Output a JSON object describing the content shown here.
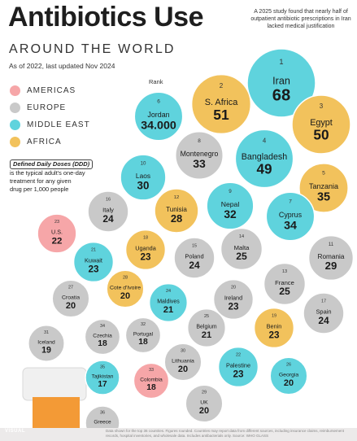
{
  "header": {
    "title": "Antibiotics Use",
    "subtitle": "AROUND THE WORLD",
    "date_note": "As of 2022, last updated Nov 2024",
    "study_note": "A 2025 study found that nearly half of outpatient antibiotic prescriptions in Iran lacked medical justification"
  },
  "legend": [
    {
      "label": "AMERICAS",
      "color": "#f6a6a8"
    },
    {
      "label": "EUROPE",
      "color": "#c9c9c9"
    },
    {
      "label": "MIDDLE EAST",
      "color": "#5fd3dd"
    },
    {
      "label": "AFRICA",
      "color": "#f2c25c"
    }
  ],
  "ddd": {
    "title": "Defined Daily Doses (DDD)",
    "line1": "is the typical adult's one-day",
    "line2": "treatment for any given",
    "line3": "drug per 1,000 people"
  },
  "rank_label": "Rank",
  "footer": {
    "source": "Data shown for the top 36 countries. Figures rounded. Countries may report data from different sources, including insurance claims, reimbursement records, hospital inventories, and wholesale data. Includes antibacterials only. Source: WHO GLASS",
    "brand": "VISUAL"
  },
  "chart_data": {
    "type": "bubble",
    "title": "Antibiotics Use",
    "subtitle": "AROUND THE WORLD",
    "unit": "DDD per 1,000 people",
    "regions": {
      "Americas": "#f6a6a8",
      "Europe": "#c9c9c9",
      "Middle East": "#5fd3dd",
      "Africa": "#f2c25c"
    },
    "points": [
      {
        "rank": "1",
        "country": "Iran",
        "value": "68",
        "region": "Middle East"
      },
      {
        "rank": "2",
        "country": "S. Africa",
        "value": "51",
        "region": "Africa"
      },
      {
        "rank": "3",
        "country": "Egypt",
        "value": "50",
        "region": "Africa"
      },
      {
        "rank": "4",
        "country": "Bangladesh",
        "value": "49",
        "region": "Middle East"
      },
      {
        "rank": "5",
        "country": "Tanzania",
        "value": "35",
        "region": "Africa"
      },
      {
        "rank": "6",
        "country": "Jordan",
        "value": "34.000",
        "region": "Middle East"
      },
      {
        "rank": "7",
        "country": "Cyprus",
        "value": "34",
        "region": "Middle East"
      },
      {
        "rank": "8",
        "country": "Montenegro",
        "value": "33",
        "region": "Europe"
      },
      {
        "rank": "9",
        "country": "Nepal",
        "value": "32",
        "region": "Middle East"
      },
      {
        "rank": "10",
        "country": "Laos",
        "value": "30",
        "region": "Middle East"
      },
      {
        "rank": "11",
        "country": "Romania",
        "value": "29",
        "region": "Europe"
      },
      {
        "rank": "12",
        "country": "Tunisia",
        "value": "28",
        "region": "Africa"
      },
      {
        "rank": "13",
        "country": "France",
        "value": "25",
        "region": "Europe"
      },
      {
        "rank": "14",
        "country": "Malta",
        "value": "25",
        "region": "Europe"
      },
      {
        "rank": "15",
        "country": "Poland",
        "value": "24",
        "region": "Europe"
      },
      {
        "rank": "16",
        "country": "Italy",
        "value": "24",
        "region": "Europe"
      },
      {
        "rank": "17",
        "country": "Spain",
        "value": "24",
        "region": "Europe"
      },
      {
        "rank": "18",
        "country": "Uganda",
        "value": "23",
        "region": "Africa"
      },
      {
        "rank": "19",
        "country": "Benin",
        "value": "23",
        "region": "Africa"
      },
      {
        "rank": "20",
        "country": "Ireland",
        "value": "23",
        "region": "Europe"
      },
      {
        "rank": "21",
        "country": "Kuwait",
        "value": "23",
        "region": "Middle East"
      },
      {
        "rank": "22",
        "country": "Palestine",
        "value": "23",
        "region": "Middle East"
      },
      {
        "rank": "23",
        "country": "U.S.",
        "value": "22",
        "region": "Americas"
      },
      {
        "rank": "24",
        "country": "Maldives",
        "value": "21",
        "region": "Middle East"
      },
      {
        "rank": "25",
        "country": "Belgium",
        "value": "21",
        "region": "Europe"
      },
      {
        "rank": "26",
        "country": "Georgia",
        "value": "20",
        "region": "Middle East"
      },
      {
        "rank": "27",
        "country": "Croatia",
        "value": "20",
        "region": "Europe"
      },
      {
        "rank": "28",
        "country": "Cote d'Ivoire",
        "value": "20",
        "region": "Africa"
      },
      {
        "rank": "29",
        "country": "UK",
        "value": "20",
        "region": "Europe"
      },
      {
        "rank": "30",
        "country": "Lithuania",
        "value": "20",
        "region": "Europe"
      },
      {
        "rank": "31",
        "country": "Iceland",
        "value": "19",
        "region": "Europe"
      },
      {
        "rank": "32",
        "country": "Portugal",
        "value": "18",
        "region": "Europe"
      },
      {
        "rank": "33",
        "country": "Colombia",
        "value": "18",
        "region": "Americas"
      },
      {
        "rank": "34",
        "country": "Czechia",
        "value": "18",
        "region": "Europe"
      },
      {
        "rank": "35",
        "country": "Tajikistan",
        "value": "17",
        "region": "Middle East"
      },
      {
        "rank": "36",
        "country": "Greece",
        "value": "",
        "region": "Europe"
      }
    ]
  }
}
